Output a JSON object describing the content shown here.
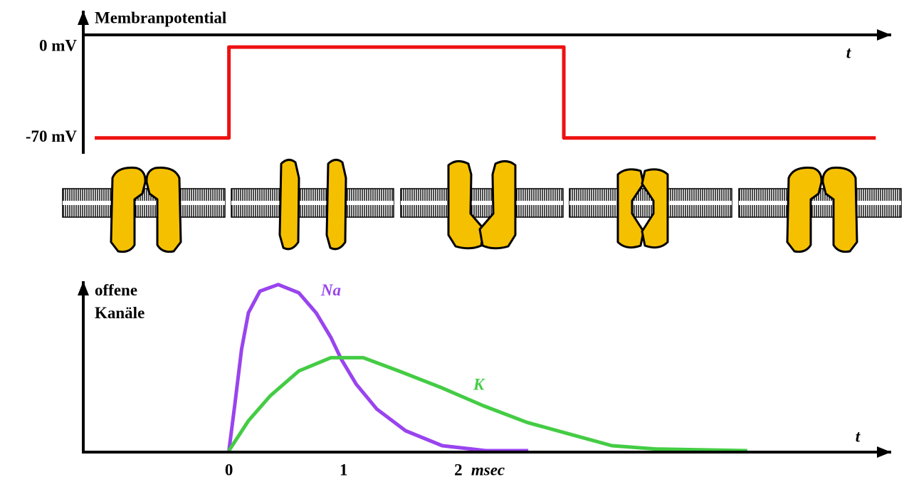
{
  "chart_data": [
    {
      "type": "line",
      "title": "Membranpotential",
      "xlabel": "t",
      "x": [
        -1.17,
        0,
        0,
        2.92,
        2.92,
        5.64
      ],
      "values": [
        -70,
        -70,
        0,
        0,
        -70,
        -70
      ],
      "color": "#ee1111",
      "xlim": [
        -1.27,
        5.7
      ],
      "ylim": [
        -80,
        28
      ],
      "yticks": [
        {
          "value": 0,
          "label": "0 mV"
        },
        {
          "value": -70,
          "label": "-70 mV"
        }
      ]
    },
    {
      "type": "line",
      "ylabel": "offene Kanäle",
      "xlabel": "t",
      "xunit": "msec",
      "xlim": [
        -1.27,
        5.7
      ],
      "ylim": [
        0,
        1.02
      ],
      "xticks": [
        0,
        1,
        2
      ],
      "series": [
        {
          "name": "Na",
          "color": "#9944ee",
          "x": [
            0,
            0.05,
            0.11,
            0.17,
            0.27,
            0.43,
            0.61,
            0.76,
            0.89,
            0.98,
            1.11,
            1.29,
            1.54,
            1.86,
            2.24,
            2.61
          ],
          "values": [
            0,
            0.27,
            0.61,
            0.83,
            0.96,
            1.0,
            0.95,
            0.83,
            0.68,
            0.55,
            0.4,
            0.25,
            0.12,
            0.03,
            0.0,
            0.0
          ]
        },
        {
          "name": "K",
          "color": "#44cc44",
          "x": [
            0,
            0.17,
            0.36,
            0.61,
            0.89,
            1.17,
            1.48,
            1.85,
            2.22,
            2.6,
            2.97,
            3.34,
            3.72,
            4.52
          ],
          "values": [
            0,
            0.18,
            0.33,
            0.48,
            0.56,
            0.56,
            0.48,
            0.38,
            0.27,
            0.17,
            0.1,
            0.03,
            0.01,
            0
          ]
        }
      ]
    }
  ]
}
